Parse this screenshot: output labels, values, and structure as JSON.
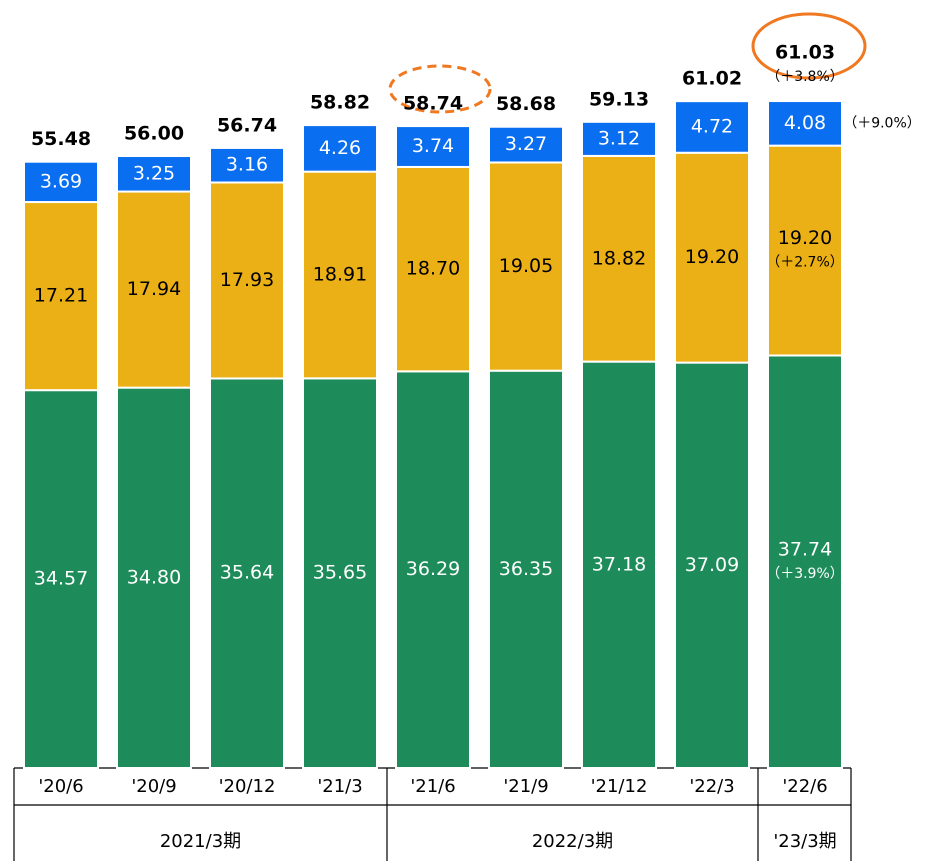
{
  "chart_data": {
    "type": "bar",
    "categories": [
      "'20/6",
      "'20/9",
      "'20/12",
      "'21/3",
      "'21/6",
      "'21/9",
      "'21/12",
      "'22/3",
      "'22/6"
    ],
    "groups": [
      {
        "label": "2021/3期",
        "span": 4
      },
      {
        "label": "2022/3期",
        "span": 4
      },
      {
        "label": "'23/3期",
        "span": 1
      }
    ],
    "series": [
      {
        "color": "#1e8c5a",
        "values": [
          34.57,
          34.8,
          35.64,
          35.65,
          36.29,
          36.35,
          37.18,
          37.09,
          37.74
        ],
        "value_labels": [
          "34.57",
          "34.80",
          "35.64",
          "35.65",
          "36.29",
          "36.35",
          "37.18",
          "37.09",
          "37.74"
        ],
        "change": "（＋3.9%）"
      },
      {
        "color": "#ebb016",
        "values": [
          17.21,
          17.94,
          17.93,
          18.91,
          18.7,
          19.05,
          18.82,
          19.2,
          19.2
        ],
        "value_labels": [
          "17.21",
          "17.94",
          "17.93",
          "18.91",
          "18.70",
          "19.05",
          "18.82",
          "19.20",
          "19.20"
        ],
        "change": "（＋2.7%）"
      },
      {
        "color": "#0a6ef0",
        "values": [
          3.69,
          3.25,
          3.16,
          4.26,
          3.74,
          3.27,
          3.12,
          4.72,
          4.08
        ],
        "value_labels": [
          "3.69",
          "3.25",
          "3.16",
          "4.26",
          "3.74",
          "3.27",
          "3.12",
          "4.72",
          "4.08"
        ],
        "change": "（＋9.0%）"
      }
    ],
    "totals": {
      "values": [
        55.48,
        56.0,
        56.74,
        58.82,
        58.74,
        58.68,
        59.13,
        61.02,
        61.03
      ],
      "value_labels": [
        "55.48",
        "56.00",
        "56.74",
        "58.82",
        "58.74",
        "58.68",
        "59.13",
        "61.02",
        "61.03"
      ],
      "change": "（＋3.8%）"
    }
  }
}
